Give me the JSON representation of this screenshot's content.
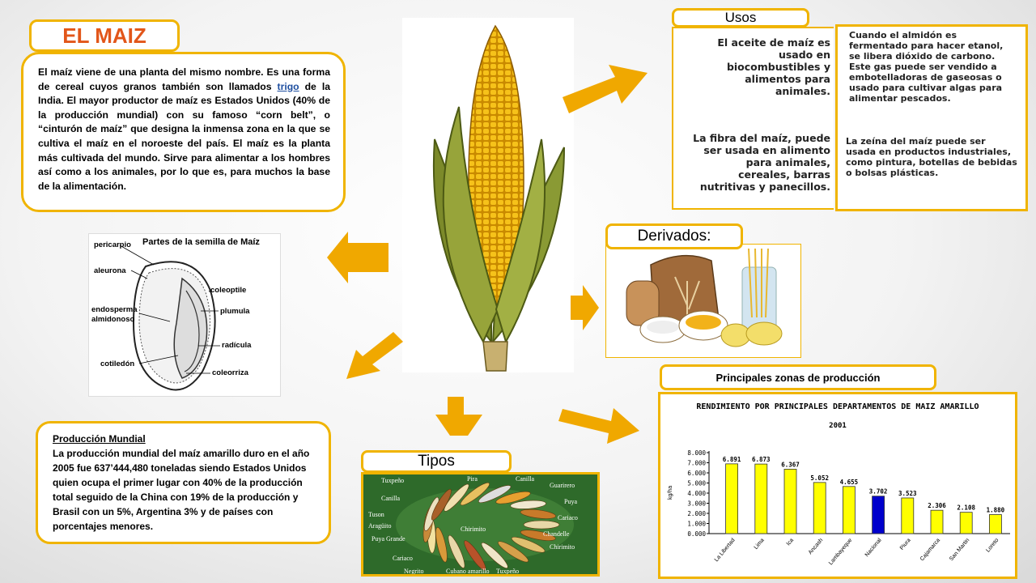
{
  "title": "EL MAIZ",
  "intro": {
    "before_link": "El maíz viene de una planta del mismo nombre. Es una forma de cereal cuyos granos también son llamados ",
    "link": "trigo",
    "after_link": " de la India. El mayor productor de maíz es Estados Unidos (40% de la producción mundial) con su famoso “corn belt”, o “cinturón de maíz” que designa la inmensa zona en la que se cultiva el maíz en el noroeste del país. El maíz es la planta más cultivada del mundo. Sirve para alimentar a los hombres así como a los animales, por lo que es, para muchos la base de la alimentación."
  },
  "seed_diagram": {
    "title": "Partes de la semilla de Maíz",
    "labels": [
      "pericarpio",
      "aleurona",
      "coleoptile",
      "endosperma",
      "almidonoso",
      "plumula",
      "radícula",
      "cotiledón",
      "coleorriza"
    ]
  },
  "produccion": {
    "heading": "Producción Mundial",
    "text": "La producción mundial del maíz amarillo duro en el año 2005 fue 637’444,480 toneladas siendo Estados Unidos quien ocupa el primer lugar con 40% de la producción total seguido de la China con 19% de la producción y Brasil con un 5%, Argentina 3% y de países con porcentajes menores."
  },
  "usos": {
    "tab": "Usos",
    "left_1": "El aceite de maíz es usado en biocombustibles y alimentos para animales.",
    "left_2": "La fibra del maíz, puede ser usada en alimento para animales, cereales, barras nutritivas y panecillos.",
    "right_1": "Cuando el almidón es fermentado para hacer etanol, se libera dióxido de carbono. Este gas puede ser vendido a embotelladoras de gaseosas o usado para cultivar algas para alimentar pescados.",
    "right_2": "La zeína del maíz puede ser usada en productos industriales, como pintura, botellas de bebidas o bolsas plásticas."
  },
  "derivados": {
    "tab": "Derivados:"
  },
  "zonas": {
    "tab": "Principales zonas de producción"
  },
  "tipos": {
    "tab": "Tipos",
    "labels": [
      "Tuxpeño",
      "Pira",
      "Canilla",
      "Guarirero",
      "Canilla",
      "Puya",
      "Tuson",
      "Cariaco",
      "Aragüito",
      "Chirimito",
      "Chandelle",
      "Puya Grande",
      "Chirimito",
      "Cariaco",
      "Negrito",
      "Cubano amarillo",
      "Tuxpeño"
    ]
  },
  "chart_data": {
    "type": "bar",
    "title": "RENDIMIENTO POR PRINCIPALES DEPARTAMENTOS DE MAIZ AMARILLO",
    "subtitle": "2001",
    "ylabel": "kg/ha",
    "ylim": [
      0,
      8000
    ],
    "yticks": [
      "0.000",
      "1.000",
      "2.000",
      "3.000",
      "4.000",
      "5.000",
      "6.000",
      "7.000",
      "8.000"
    ],
    "categories": [
      "La Libertad",
      "Lima",
      "Ica",
      "Ancash",
      "Lambayeque",
      "Nacional",
      "Piura",
      "Cajamarca",
      "San Martin",
      "Loreto"
    ],
    "values": [
      6891,
      6873,
      6367,
      5052,
      4655,
      3702,
      3523,
      2306,
      2108,
      1880
    ],
    "value_labels": [
      "6.891",
      "6.873",
      "6.367",
      "5.052",
      "4.655",
      "3.702",
      "3.523",
      "2.306",
      "2.108",
      "1.880"
    ],
    "colors": [
      "#ffff00",
      "#ffff00",
      "#ffff00",
      "#ffff00",
      "#ffff00",
      "#0000cc",
      "#ffff00",
      "#ffff00",
      "#ffff00",
      "#ffff00"
    ],
    "grid": false
  },
  "colors": {
    "accent": "#f0b400",
    "title": "#e2561a",
    "arrow": "#f0a800"
  }
}
